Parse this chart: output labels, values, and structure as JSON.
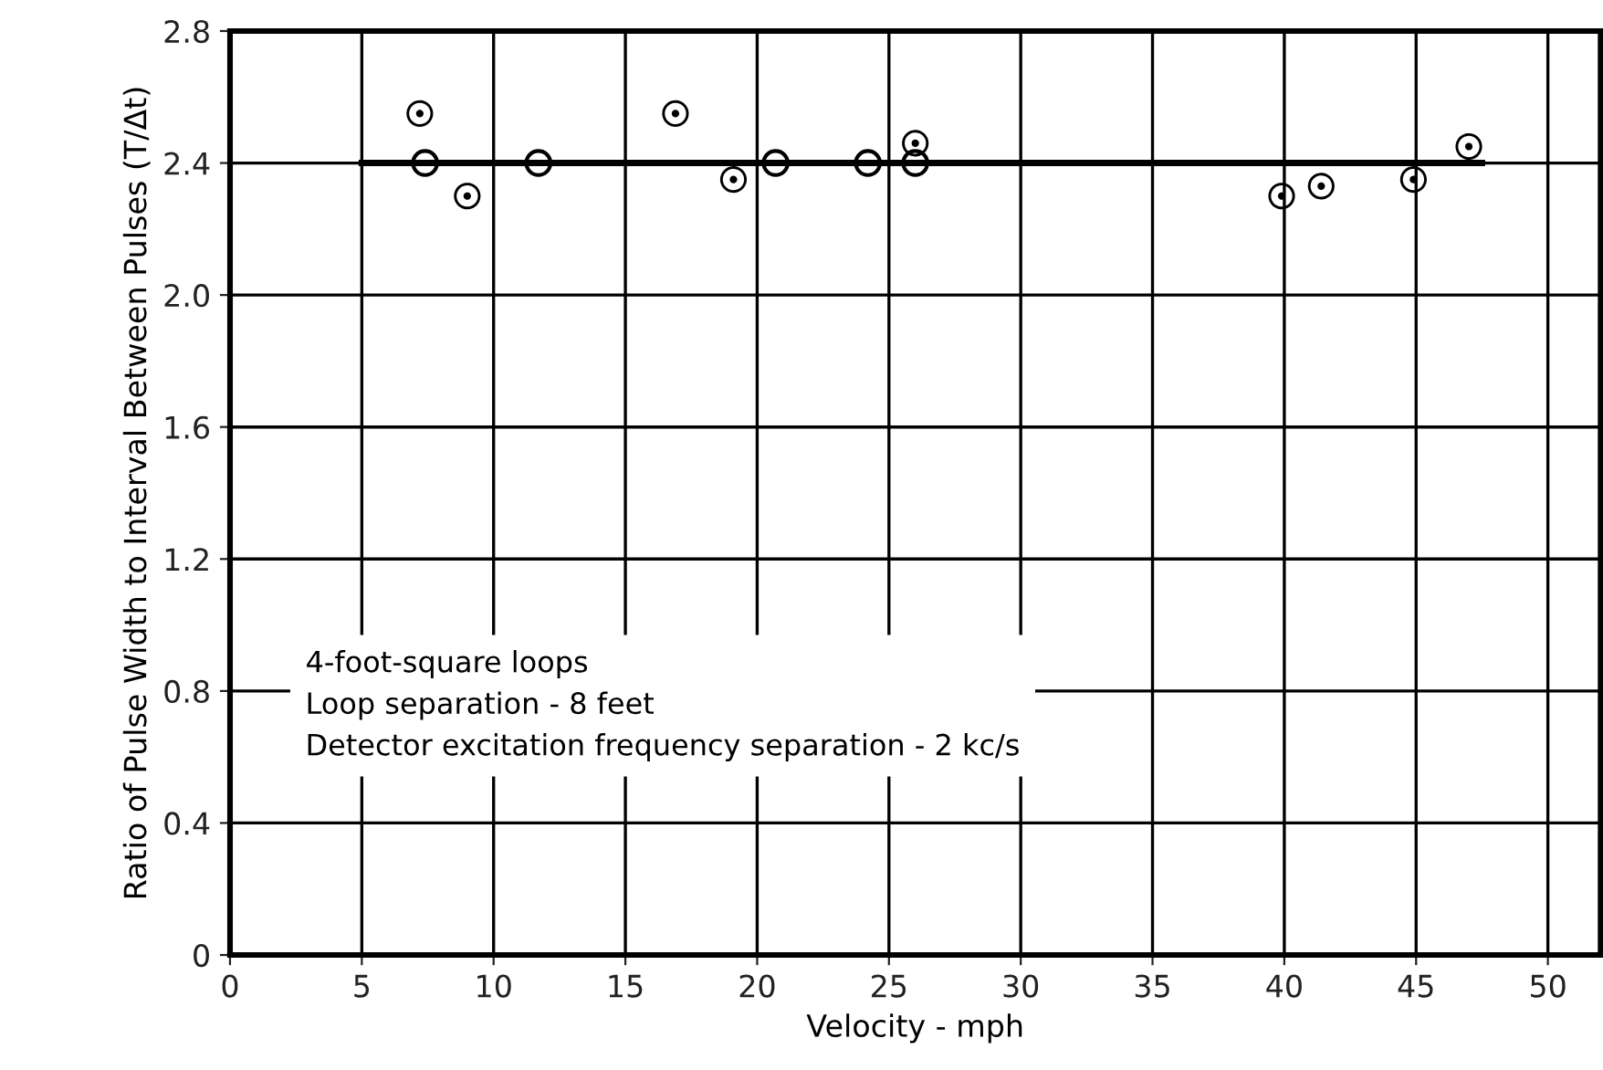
{
  "chart_data": {
    "type": "scatter",
    "xlabel": "Velocity - mph",
    "ylabel": "Ratio of Pulse Width to Interval Between Pulses (T/Δt)",
    "series": [
      {
        "marker": "circle",
        "color": "#000000",
        "x": [
          7.4,
          11.7,
          20.7,
          24.2,
          26.0
        ],
        "values": [
          2.4,
          2.4,
          2.4,
          2.4,
          2.4
        ]
      },
      {
        "marker": "circle",
        "color": "#000000",
        "x": [
          7.2,
          9.0,
          16.9,
          19.1,
          26.0,
          39.9,
          41.4,
          44.9,
          47.0
        ],
        "values": [
          2.55,
          2.3,
          2.55,
          2.35,
          2.46,
          2.3,
          2.33,
          2.35,
          2.45
        ]
      },
      {
        "type": "line",
        "marker": "none",
        "line_style": "solid",
        "color": "#000000",
        "x": [
          5,
          47.5
        ],
        "values": [
          2.4,
          2.4
        ]
      }
    ],
    "xlim": [
      0,
      52
    ],
    "xticks": [
      0,
      5,
      10,
      15,
      20,
      25,
      30,
      35,
      40,
      45,
      50
    ],
    "ylim": [
      0,
      2.8
    ],
    "yticks": [
      0,
      0.4,
      0.8,
      1.2,
      1.6,
      {
        "value": 2,
        "label": "2.0"
      },
      2.4,
      2.8
    ],
    "grid": true,
    "annotations": [
      "4-foot-square loops",
      "Loop separation - 8 feet",
      "Detector excitation frequency separation - 2 kc/s"
    ]
  }
}
